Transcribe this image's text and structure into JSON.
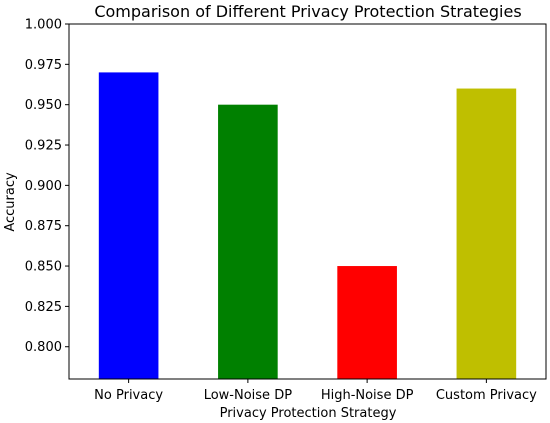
{
  "chart_data": {
    "type": "bar",
    "title": "Comparison of Different Privacy Protection Strategies",
    "xlabel": "Privacy Protection Strategy",
    "ylabel": "Accuracy",
    "categories": [
      "No Privacy",
      "Low-Noise DP",
      "High-Noise DP",
      "Custom Privacy"
    ],
    "values": [
      0.97,
      0.95,
      0.85,
      0.96
    ],
    "colors": [
      "#0000ff",
      "#008000",
      "#ff0000",
      "#bfbf00"
    ],
    "ylim": [
      0.78,
      1.0
    ],
    "yticks": [
      "0.800",
      "0.825",
      "0.850",
      "0.875",
      "0.900",
      "0.925",
      "0.950",
      "0.975",
      "1.000"
    ],
    "grid": false,
    "legend": "none"
  }
}
